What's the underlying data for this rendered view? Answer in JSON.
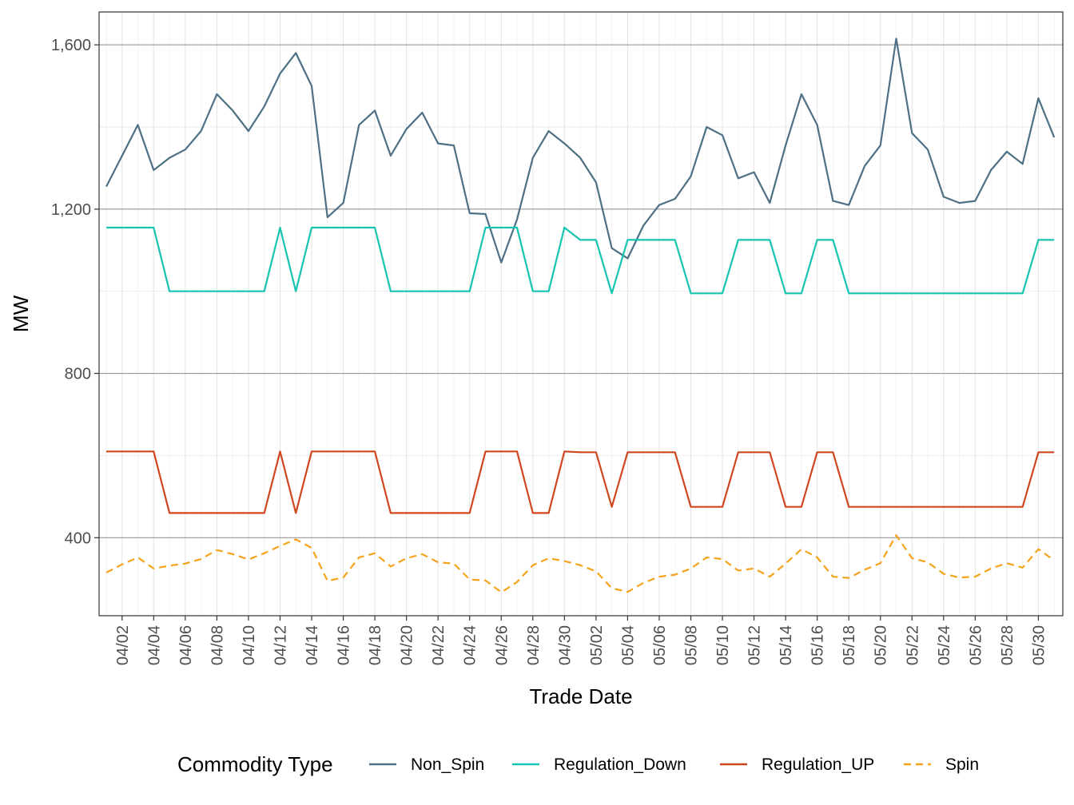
{
  "chart_data": {
    "type": "line",
    "title": "",
    "xlabel": "Trade Date",
    "ylabel": "MW",
    "ylim": [
      210,
      1680
    ],
    "y_ticks": [
      400,
      800,
      1200,
      1600
    ],
    "y_tick_labels": [
      "400",
      "800",
      "1,200",
      "1,600"
    ],
    "x_tick_labels": [
      "04/02",
      "04/04",
      "04/06",
      "04/08",
      "04/10",
      "04/12",
      "04/14",
      "04/16",
      "04/18",
      "04/20",
      "04/22",
      "04/24",
      "04/26",
      "04/28",
      "04/30",
      "05/02",
      "05/04",
      "05/06",
      "05/08",
      "05/10",
      "05/12",
      "05/14",
      "05/16",
      "05/18",
      "05/20",
      "05/22",
      "05/24",
      "05/26",
      "05/28",
      "05/30"
    ],
    "x": [
      "04/01",
      "04/02",
      "04/03",
      "04/04",
      "04/05",
      "04/06",
      "04/07",
      "04/08",
      "04/09",
      "04/10",
      "04/11",
      "04/12",
      "04/13",
      "04/14",
      "04/15",
      "04/16",
      "04/17",
      "04/18",
      "04/19",
      "04/20",
      "04/21",
      "04/22",
      "04/23",
      "04/24",
      "04/25",
      "04/26",
      "04/27",
      "04/28",
      "04/29",
      "04/30",
      "05/01",
      "05/02",
      "05/03",
      "05/04",
      "05/05",
      "05/06",
      "05/07",
      "05/08",
      "05/09",
      "05/10",
      "05/11",
      "05/12",
      "05/13",
      "05/14",
      "05/15",
      "05/16",
      "05/17",
      "05/18",
      "05/19",
      "05/20",
      "05/21",
      "05/22",
      "05/23",
      "05/24",
      "05/25",
      "05/26",
      "05/27",
      "05/28",
      "05/29",
      "05/30",
      "05/31"
    ],
    "legend_title": "Commodity Type",
    "legend_position": "bottom",
    "grid": true,
    "series": [
      {
        "name": "Non_Spin",
        "color": "#4d7084",
        "dash": "solid",
        "values": [
          1255,
          1330,
          1405,
          1295,
          1325,
          1345,
          1390,
          1480,
          1440,
          1390,
          1450,
          1530,
          1580,
          1500,
          1180,
          1215,
          1405,
          1440,
          1330,
          1395,
          1435,
          1360,
          1355,
          1190,
          1188,
          1070,
          1175,
          1325,
          1390,
          1360,
          1325,
          1265,
          1105,
          1080,
          1160,
          1210,
          1225,
          1280,
          1400,
          1380,
          1275,
          1290,
          1215,
          1355,
          1480,
          1405,
          1220,
          1210,
          1305,
          1355,
          1615,
          1385,
          1345,
          1230,
          1215,
          1220,
          1295,
          1340,
          1310,
          1470,
          1375
        ]
      },
      {
        "name": "Regulation_Down",
        "color": "#15c4b1",
        "dash": "solid",
        "values": [
          1155,
          1155,
          1155,
          1155,
          1000,
          1000,
          1000,
          1000,
          1000,
          1000,
          1000,
          1155,
          1000,
          1155,
          1155,
          1155,
          1155,
          1155,
          1000,
          1000,
          1000,
          1000,
          1000,
          1000,
          1155,
          1155,
          1155,
          1000,
          1000,
          1155,
          1125,
          1125,
          995,
          1125,
          1125,
          1125,
          1125,
          995,
          995,
          995,
          1125,
          1125,
          1125,
          995,
          995,
          1125,
          1125,
          995,
          995,
          995,
          995,
          995,
          995,
          995,
          995,
          995,
          995,
          995,
          995,
          1125,
          1125
        ]
      },
      {
        "name": "Regulation_UP",
        "color": "#d0461f",
        "dash": "solid",
        "values": [
          610,
          610,
          610,
          610,
          460,
          460,
          460,
          460,
          460,
          460,
          460,
          610,
          460,
          610,
          610,
          610,
          610,
          610,
          460,
          460,
          460,
          460,
          460,
          460,
          610,
          610,
          610,
          460,
          460,
          610,
          608,
          608,
          475,
          608,
          608,
          608,
          608,
          475,
          475,
          475,
          608,
          608,
          608,
          475,
          475,
          608,
          608,
          475,
          475,
          475,
          475,
          475,
          475,
          475,
          475,
          475,
          475,
          475,
          475,
          608,
          608
        ]
      },
      {
        "name": "Spin",
        "color": "#f5a31a",
        "dash": "dashed",
        "values": [
          315,
          335,
          352,
          325,
          332,
          337,
          348,
          370,
          360,
          347,
          362,
          380,
          396,
          375,
          295,
          303,
          352,
          362,
          330,
          350,
          360,
          340,
          337,
          298,
          296,
          267,
          292,
          333,
          350,
          343,
          333,
          318,
          277,
          268,
          290,
          305,
          310,
          325,
          352,
          348,
          320,
          325,
          305,
          337,
          372,
          352,
          305,
          302,
          322,
          338,
          406,
          350,
          340,
          312,
          303,
          305,
          325,
          338,
          327,
          372,
          345
        ]
      }
    ]
  }
}
